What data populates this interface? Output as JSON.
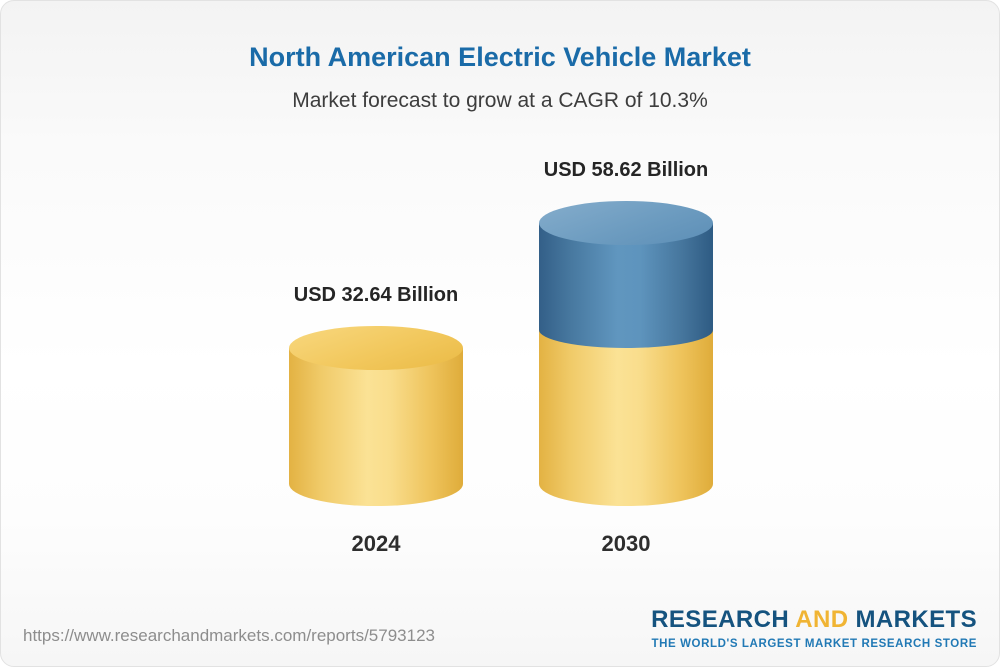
{
  "header": {
    "title": "North American Electric Vehicle Market",
    "subtitle": "Market forecast to grow at a CAGR of 10.3%"
  },
  "chart_data": {
    "type": "bar",
    "subtype": "3d-cylinder",
    "title": "North American Electric Vehicle Market",
    "subtitle": "Market forecast to grow at a CAGR of 10.3%",
    "cagr_percent": 10.3,
    "unit": "USD Billion",
    "categories": [
      "2024",
      "2030"
    ],
    "values": [
      32.64,
      58.62
    ],
    "value_labels": [
      "USD 32.64 Billion",
      "USD 58.62 Billion"
    ],
    "series_note": "2030 cylinder shows the 2024-equivalent portion in yellow and the growth portion in blue",
    "colors": {
      "base_segment": "#F2C75F",
      "growth_segment": "#4A80AC",
      "title": "#1A6BA8"
    },
    "legend": "none",
    "axes": "none"
  },
  "footer": {
    "url": "https://www.researchandmarkets.com/reports/5793123",
    "logo": {
      "part1": "RESEARCH",
      "part2": "AND",
      "part3": "MARKETS",
      "tagline": "THE WORLD'S LARGEST MARKET RESEARCH STORE"
    }
  }
}
